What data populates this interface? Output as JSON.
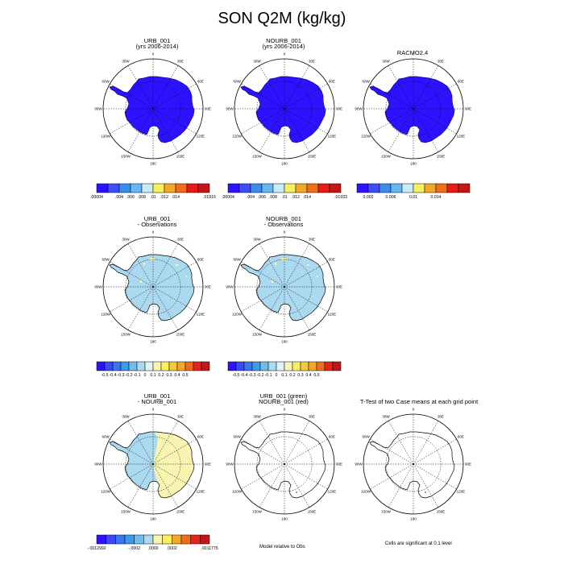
{
  "figure": {
    "title": "SON Q2M (kg/kg)"
  },
  "panels": [
    {
      "id": "p1",
      "title_lines": [
        "URB_001",
        "(yrs 2006-2014)"
      ],
      "fill": "purple",
      "coast": "#000"
    },
    {
      "id": "p2",
      "title_lines": [
        "NOURB_001",
        "(yrs 2006-2014)"
      ],
      "fill": "purple",
      "coast": "#000"
    },
    {
      "id": "p3",
      "title_lines": [
        "RACMO2.4"
      ],
      "fill": "purple",
      "coast": "#000"
    },
    {
      "id": "p4",
      "title_lines": [
        "URB_001",
        "- Observations"
      ],
      "fill": "lightblue",
      "coast": "#000"
    },
    {
      "id": "p5",
      "title_lines": [
        "NOURB_001",
        "- Observations"
      ],
      "fill": "lightblue",
      "coast": "#000"
    },
    {
      "id": "p7",
      "title_lines": [
        "URB_001",
        "- NOURB_001"
      ],
      "fill": "split",
      "coast": "#000"
    },
    {
      "id": "p8",
      "title_lines": [
        "URB_001 (green)",
        "NOURB_001 (red)"
      ],
      "fill": "none",
      "coast": "#000"
    },
    {
      "id": "p9",
      "title_lines": [
        "T-Test of two Case means at each grid point"
      ],
      "fill": "none",
      "coast": "#000"
    }
  ],
  "lon_labels": [
    "0",
    "30E",
    "60E",
    "90E",
    "120E",
    "150E",
    "180",
    "150W",
    "120W",
    "90W",
    "60W",
    "30W"
  ],
  "colorbars": [
    {
      "id": "cb1",
      "colors": [
        "#2c12ff",
        "#3d4ef6",
        "#3a8eea",
        "#6ab7ef",
        "#c7ecf5",
        "#f8ef61",
        "#f3a82c",
        "#ef6d1c",
        "#e51b14",
        "#c31618"
      ],
      "labels": [
        ".00004",
        ".004",
        ".006",
        ".008",
        ".01",
        ".012",
        ".014",
        ".01915"
      ],
      "label_slots": [
        0,
        2,
        3,
        4,
        5,
        6,
        7,
        10
      ]
    },
    {
      "id": "cb2",
      "colors": [
        "#2c12ff",
        "#3d4ef6",
        "#3a8eea",
        "#6ab7ef",
        "#c7ecf5",
        "#f8ef61",
        "#f3a82c",
        "#ef6d1c",
        "#e51b14",
        "#c31618"
      ],
      "labels": [
        ".00004",
        ".004",
        ".006",
        ".008",
        ".01",
        ".012",
        ".014",
        ".01933"
      ],
      "label_slots": [
        0,
        2,
        3,
        4,
        5,
        6,
        7,
        10
      ]
    },
    {
      "id": "cb3",
      "colors": [
        "#2c12ff",
        "#3d4ef6",
        "#3a8eea",
        "#6ab7ef",
        "#c7ecf5",
        "#f8ef61",
        "#f3a82c",
        "#ef6d1c",
        "#e51b14",
        "#c31618"
      ],
      "labels": [
        "0.002",
        "0.006",
        "0.01",
        "0.014"
      ],
      "label_slots": [
        1,
        3,
        5,
        7
      ]
    },
    {
      "id": "cb4",
      "colors": [
        "#2c12ff",
        "#3a4bf5",
        "#3b76ee",
        "#3e9bea",
        "#70bde9",
        "#abd9ef",
        "#dff3f7",
        "#f8f4b1",
        "#f8ef61",
        "#f7c73e",
        "#f3a82c",
        "#ef6d1c",
        "#e5241a",
        "#c31618"
      ],
      "labels": [
        "-0.5",
        "-0.4",
        "-0.3",
        "-0.2",
        "-0.1",
        "0",
        "0.1",
        "0.2",
        "0.3",
        "0.4",
        "0.5"
      ],
      "label_slots": [
        1,
        2,
        3,
        4,
        5,
        6,
        7,
        8,
        9,
        10,
        11
      ]
    },
    {
      "id": "cb5",
      "colors": [
        "#2c12ff",
        "#3a4bf5",
        "#3b76ee",
        "#3e9bea",
        "#70bde9",
        "#abd9ef",
        "#dff3f7",
        "#f8f4b1",
        "#f8ef61",
        "#f7c73e",
        "#f3a82c",
        "#ef6d1c",
        "#e5241a",
        "#c31618"
      ],
      "labels": [
        "-0.5",
        "-0.4",
        "-0.3",
        "-0.2",
        "-0.1",
        "0",
        "0.1",
        "0.2",
        "0.3",
        "0.4",
        "0.5"
      ],
      "label_slots": [
        1,
        2,
        3,
        4,
        5,
        6,
        7,
        8,
        9,
        10,
        11
      ]
    },
    {
      "id": "cb6",
      "colors": [
        "#2c12ff",
        "#3a4bf5",
        "#3b76ee",
        "#3e9bea",
        "#70bde9",
        "#abd9ef",
        "#f8f4b1",
        "#f8ef61",
        "#f3a82c",
        "#ef6d1c",
        "#e5241a",
        "#c31618"
      ],
      "labels": [
        "-.0012992",
        "-.0002",
        ".0000",
        ".0002",
        ".0011775"
      ],
      "label_slots": [
        0,
        4,
        6,
        8,
        12
      ]
    }
  ],
  "notes": {
    "model_relative": "Model relative to Obs",
    "significance": "Cells are significant at 0.1 level"
  }
}
